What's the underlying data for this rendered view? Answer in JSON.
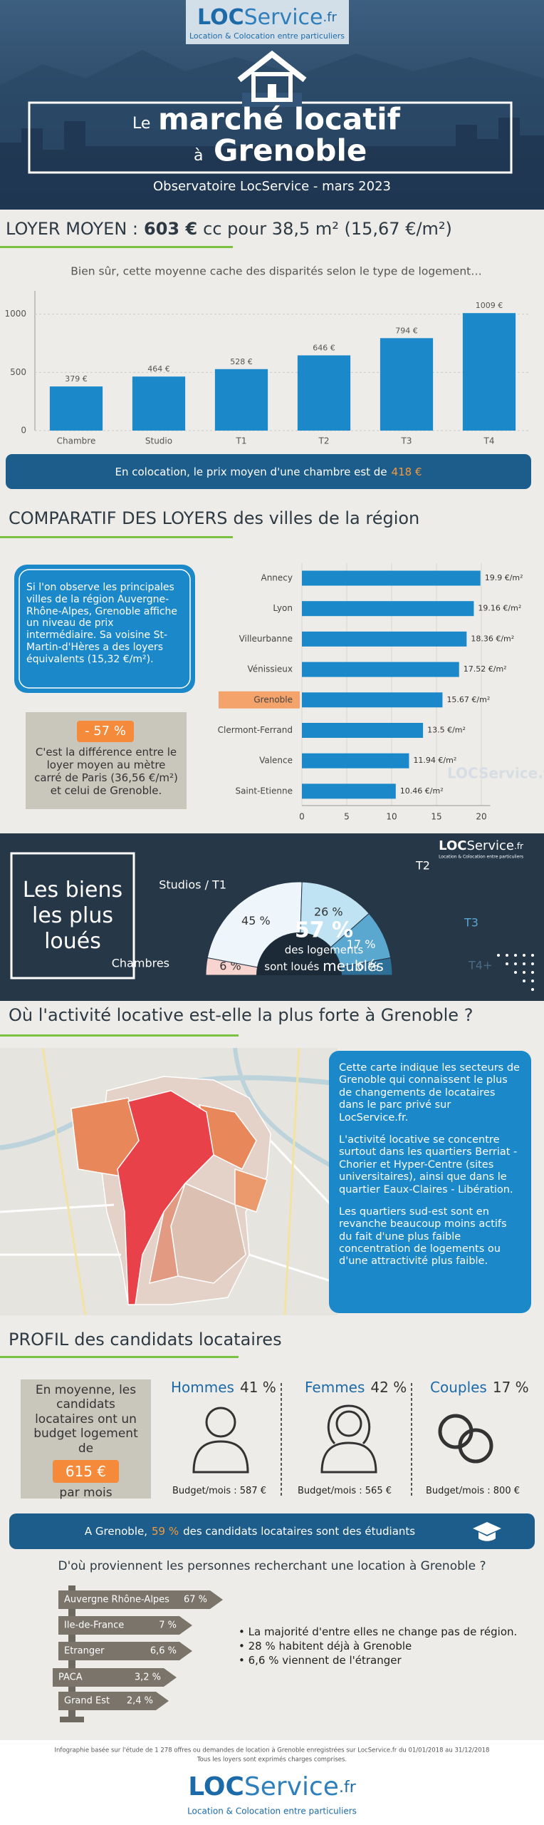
{
  "header": {
    "logo": [
      "LOC",
      "Service",
      ".fr"
    ],
    "tagline": "Location & Colocation entre particuliers",
    "title": [
      "Le",
      "marché locatif",
      "à",
      "Grenoble"
    ],
    "subtitle": "Observatoire LocService - mars 2023"
  },
  "loyer": {
    "heading": [
      "LOYER MOYEN :",
      "603 €",
      "cc pour 38,5 m² (15,67 €/m²)"
    ],
    "note": "Bien sûr, cette moyenne cache des disparités selon le type de logement…",
    "coloc": [
      "En colocation, le prix moyen d'une chambre est de",
      "418 €"
    ]
  },
  "comparatif": {
    "heading": [
      "COMPARATIF DES LOYERS",
      "des villes de la région"
    ],
    "intro": "Si l'on observe les principales villes de la région Auvergne-Rhône-Alpes, Grenoble affiche un niveau de prix intermédiaire. Sa voisine St-Martin-d'Hères a des loyers équivalents (15,32 €/m²).",
    "paris": [
      "- 57 %",
      "C'est la différence entre le loyer moyen au mètre carré de Paris (36,56 €/m²) et celui de Grenoble."
    ]
  },
  "chart_data": [
    {
      "type": "bar",
      "categories": [
        "Chambre",
        "Studio",
        "T1",
        "T2",
        "T3",
        "T4"
      ],
      "values": [
        379,
        464,
        528,
        646,
        794,
        1009
      ],
      "value_labels": [
        "379 €",
        "464 €",
        "528 €",
        "646 €",
        "794 €",
        "1009 €"
      ],
      "color": "#1a88c9",
      "ylim": [
        0,
        1200
      ],
      "yticks": [
        0,
        500,
        1000
      ],
      "grid": true
    },
    {
      "type": "hbar",
      "categories": [
        "Annecy",
        "Lyon",
        "Villeurbanne",
        "Vénissieux",
        "Grenoble",
        "Clermont-Ferrand",
        "Valence",
        "Saint-Etienne"
      ],
      "values": [
        19.9,
        19.16,
        18.36,
        17.52,
        15.67,
        13.5,
        11.94,
        10.46
      ],
      "value_labels": [
        "19.9 €/m²",
        "19.16 €/m²",
        "18.36 €/m²",
        "17.52 €/m²",
        "15.67 €/m²",
        "13.5 €/m²",
        "11.94 €/m²",
        "10.46 €/m²"
      ],
      "color": "#1a88c9",
      "highlight": "Grenoble",
      "highlight_color": "#f4a36b",
      "xlim": [
        0,
        21
      ],
      "xticks": [
        0,
        5,
        10,
        15,
        20
      ],
      "grid": true,
      "watermark": "LOCService.fr"
    },
    {
      "type": "semi-donut",
      "title": [
        "Les biens",
        "les plus",
        "loués"
      ],
      "categories": [
        "Chambres",
        "Studios / T1",
        "T2",
        "T3",
        "T4+"
      ],
      "values": [
        6,
        45,
        26,
        17,
        6
      ],
      "value_labels": [
        "6 %",
        "45 %",
        "26 %",
        "17 %",
        "6 %"
      ],
      "colors": [
        "#f8d4d0",
        "#eef6fb",
        "#bfe3f2",
        "#5aa7cf",
        "#2d6f97"
      ],
      "center": [
        "57 %",
        "des logements",
        "sont loués",
        "meublés"
      ]
    }
  ],
  "activite": {
    "heading": "Où l'activité locative est-elle la plus forte à Grenoble ?",
    "paragraphs": [
      "Cette carte indique les secteurs de Grenoble qui connaissent le plus de changements de locataires dans le parc privé sur LocService.fr.",
      "L'activité locative se concentre surtout dans les quartiers Berriat - Chorier et Hyper-Centre (sites universitaires), ainsi que dans le quartier Eaux-Claires - Libération.",
      "Les quartiers sud-est sont en revanche beaucoup moins actifs du fait d'une plus faible concentration de logements ou d'une attractivité plus faible."
    ]
  },
  "profil": {
    "heading": [
      "PROFIL",
      "des candidats locataires"
    ],
    "budget": [
      "En moyenne, les candidats locataires ont un budget logement de",
      "615 €",
      "par mois"
    ],
    "groups": [
      {
        "name": "Hommes",
        "share": "41 %",
        "budget": "Budget/mois : 587 €"
      },
      {
        "name": "Femmes",
        "share": "42 %",
        "budget": "Budget/mois : 565 €"
      },
      {
        "name": "Couples",
        "share": "17 %",
        "budget": "Budget/mois : 800 €"
      }
    ],
    "students": [
      "A Grenoble,",
      "59 %",
      "des candidats locataires sont des étudiants"
    ]
  },
  "origines": {
    "heading": "D'où proviennent les personnes recherchant une location à Grenoble ?",
    "signs": [
      {
        "name": "Auvergne Rhône-Alpes",
        "share": "67 %"
      },
      {
        "name": "Ile-de-France",
        "share": "7 %"
      },
      {
        "name": "Etranger",
        "share": "6,6 %"
      },
      {
        "name": "PACA",
        "share": "3,2 %"
      },
      {
        "name": "Grand Est",
        "share": "2,4 %"
      }
    ],
    "bullets": [
      "La majorité d'entre elles ne change pas de région.",
      "28 % habitent déjà à Grenoble",
      "6,6 % viennent de l'étranger"
    ]
  },
  "footer": {
    "notes": [
      "Infographie basée sur l'étude de 1 278 offres ou demandes de location à Grenoble enregistrées sur LocService.fr du 01/01/2018 au 31/12/2018",
      "Tous les loyers sont exprimés charges comprises."
    ]
  }
}
